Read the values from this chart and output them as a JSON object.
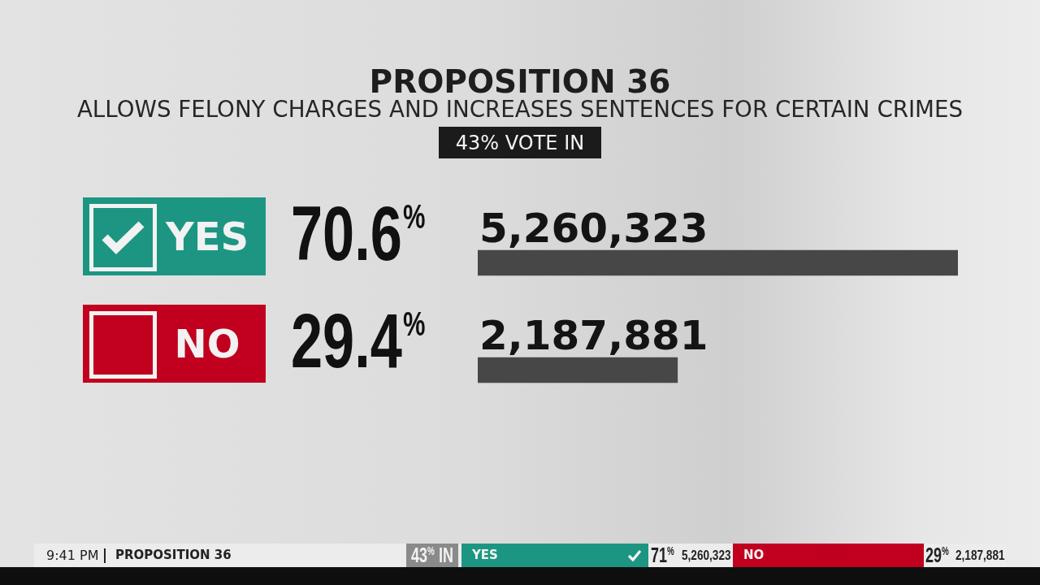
{
  "chart_data": {
    "type": "bar",
    "orientation": "horizontal",
    "title": "PROPOSITION 36",
    "subtitle": "ALLOWS FELONY CHARGES AND INCREASES SENTENCES FOR CERTAIN CRIMES",
    "categories": [
      "YES",
      "NO"
    ],
    "values": [
      5260323,
      2187881
    ],
    "colors": [
      "#474747",
      "#474747"
    ],
    "value_labels": [
      "5,260,323",
      "2,187,881"
    ],
    "annotations": [
      "43% VOTE IN",
      "70.6$^{%}$",
      "29.4$^{%}$",
      "9:41 PM",
      "PROPOSITION 36",
      "43$^{%}$ IN",
      "YES",
      "71$^{%}$",
      "5,260,323",
      "NO",
      "29$^{%}$",
      "2,187,881"
    ]
  }
}
